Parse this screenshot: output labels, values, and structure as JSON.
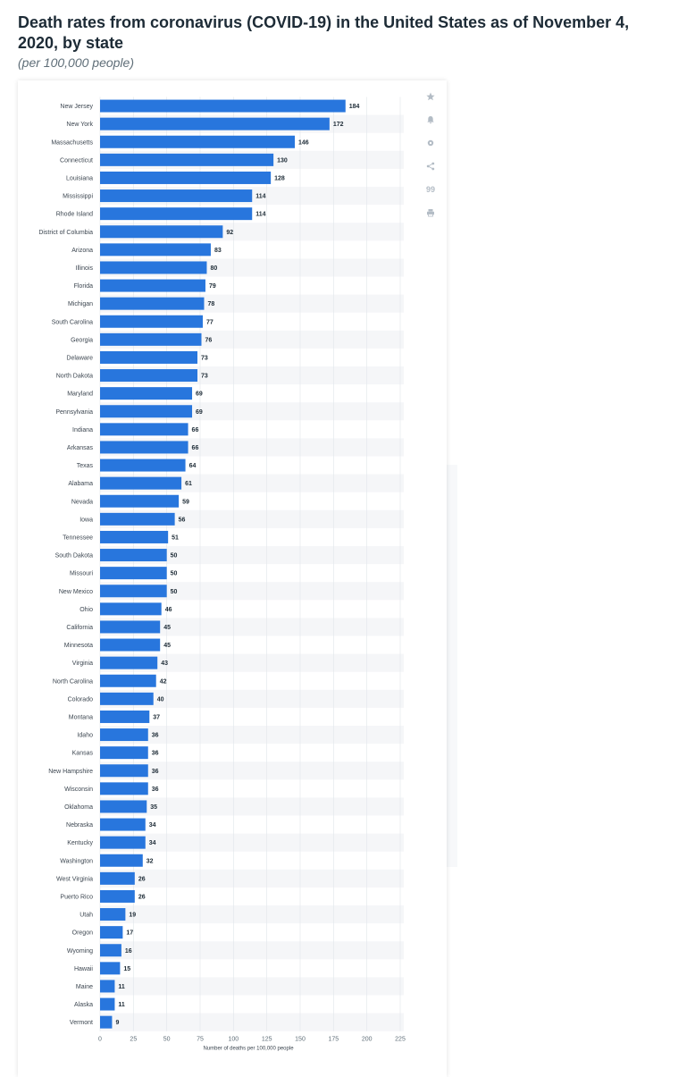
{
  "header": {
    "title": "Death rates from coronavirus (COVID-19) in the United States as of November 4, 2020, by state",
    "subtitle": "(per 100,000 people)"
  },
  "toolbar": {
    "buttons": [
      {
        "icon": "star-icon"
      },
      {
        "icon": "bell-icon"
      },
      {
        "icon": "gear-icon"
      },
      {
        "icon": "share-icon"
      },
      {
        "icon": "quote-icon",
        "label": "99"
      },
      {
        "icon": "print-icon"
      }
    ]
  },
  "colors": {
    "bar": "#2876dd",
    "stripe": "#f5f6f8",
    "grid": "#e4e8ec"
  },
  "chart_data": {
    "type": "bar",
    "orientation": "horizontal",
    "categories": [
      "New Jersey",
      "New York",
      "Massachusetts",
      "Connecticut",
      "Louisiana",
      "Mississippi",
      "Rhode Island",
      "District of Columbia",
      "Arizona",
      "Illinois",
      "Florida",
      "Michigan",
      "South Carolina",
      "Georgia",
      "Delaware",
      "North Dakota",
      "Maryland",
      "Pennsylvania",
      "Indiana",
      "Arkansas",
      "Texas",
      "Alabama",
      "Nevada",
      "Iowa",
      "Tennessee",
      "South Dakota",
      "Missouri",
      "New Mexico",
      "Ohio",
      "California",
      "Minnesota",
      "Virginia",
      "North Carolina",
      "Colorado",
      "Montana",
      "Idaho",
      "Kansas",
      "New Hampshire",
      "Wisconsin",
      "Oklahoma",
      "Nebraska",
      "Kentucky",
      "Washington",
      "West Virginia",
      "Puerto Rico",
      "Utah",
      "Oregon",
      "Wyoming",
      "Hawaii",
      "Maine",
      "Alaska",
      "Vermont"
    ],
    "values": [
      184,
      172,
      146,
      130,
      128,
      114,
      114,
      92,
      83,
      80,
      79,
      78,
      77,
      76,
      73,
      73,
      69,
      69,
      66,
      66,
      64,
      61,
      59,
      56,
      51,
      50,
      50,
      50,
      46,
      45,
      45,
      43,
      42,
      40,
      37,
      36,
      36,
      36,
      36,
      35,
      34,
      34,
      32,
      26,
      26,
      19,
      17,
      16,
      15,
      11,
      11,
      9
    ],
    "xlabel": "Number of deaths per 100,000 people",
    "ylabel": "",
    "xlim": [
      0,
      225
    ],
    "xticks": [
      0,
      25,
      50,
      75,
      100,
      125,
      150,
      175,
      200,
      225
    ],
    "grid": true,
    "legend": "none"
  }
}
